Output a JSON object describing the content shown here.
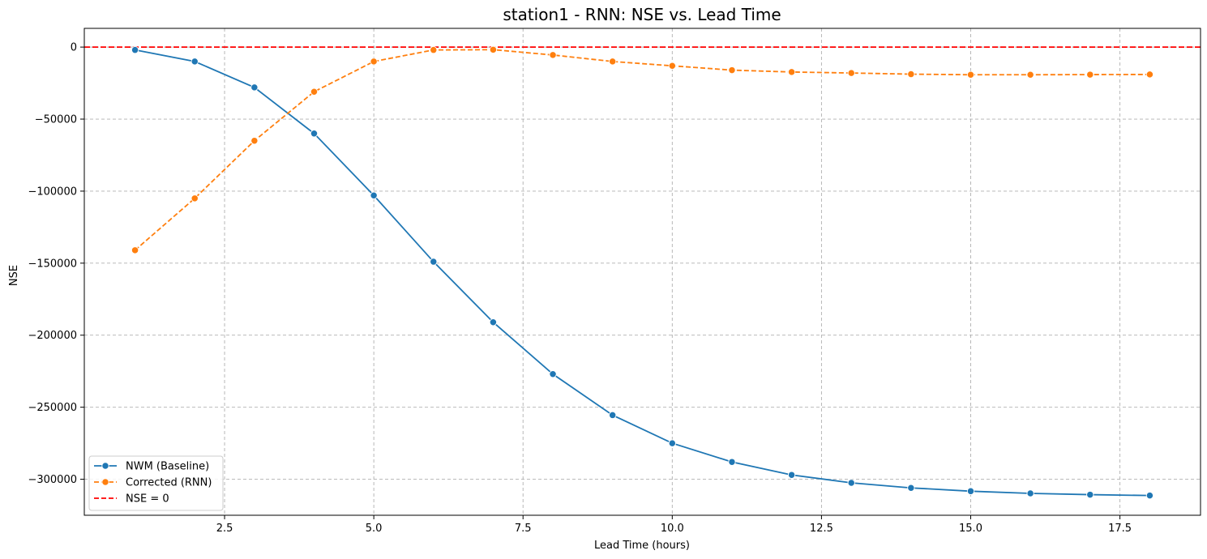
{
  "chart_data": {
    "type": "line",
    "title": "station1 - RNN: NSE vs. Lead Time",
    "xlabel": "Lead Time (hours)",
    "ylabel": "NSE",
    "xlim": [
      0.15,
      18.85
    ],
    "ylim": [
      -325000,
      13000
    ],
    "xticks": [
      2.5,
      5.0,
      7.5,
      10.0,
      12.5,
      15.0,
      17.5
    ],
    "xtick_labels": [
      "2.5",
      "5.0",
      "7.5",
      "10.0",
      "12.5",
      "15.0",
      "17.5"
    ],
    "yticks": [
      0,
      -50000,
      -100000,
      -150000,
      -200000,
      -250000,
      -300000
    ],
    "ytick_labels": [
      "0",
      "−50000",
      "−100000",
      "−150000",
      "−200000",
      "−250000",
      "−300000"
    ],
    "grid": true,
    "legend_position": "lower-left",
    "x": [
      1,
      2,
      3,
      4,
      5,
      6,
      7,
      8,
      9,
      10,
      11,
      12,
      13,
      14,
      15,
      16,
      17,
      18
    ],
    "series": [
      {
        "name": "NWM (Baseline)",
        "color": "#1f77b4",
        "linestyle": "solid",
        "marker": "circle",
        "values": [
          -2000,
          -10000,
          -28000,
          -60000,
          -103000,
          -149000,
          -191000,
          -227000,
          -255500,
          -275000,
          -288000,
          -297000,
          -302500,
          -306000,
          -308300,
          -309800,
          -310700,
          -311300
        ]
      },
      {
        "name": "Corrected (RNN)",
        "color": "#ff7f0e",
        "linestyle": "dashed",
        "marker": "circle",
        "values": [
          -141000,
          -105000,
          -65000,
          -31000,
          -10000,
          -2000,
          -1800,
          -5500,
          -10000,
          -13000,
          -16000,
          -17300,
          -18000,
          -18800,
          -19200,
          -19200,
          -19100,
          -19000
        ]
      }
    ],
    "reference_line": {
      "name": "NSE = 0",
      "y": 0,
      "color": "#ff0000",
      "linestyle": "dashed"
    }
  }
}
